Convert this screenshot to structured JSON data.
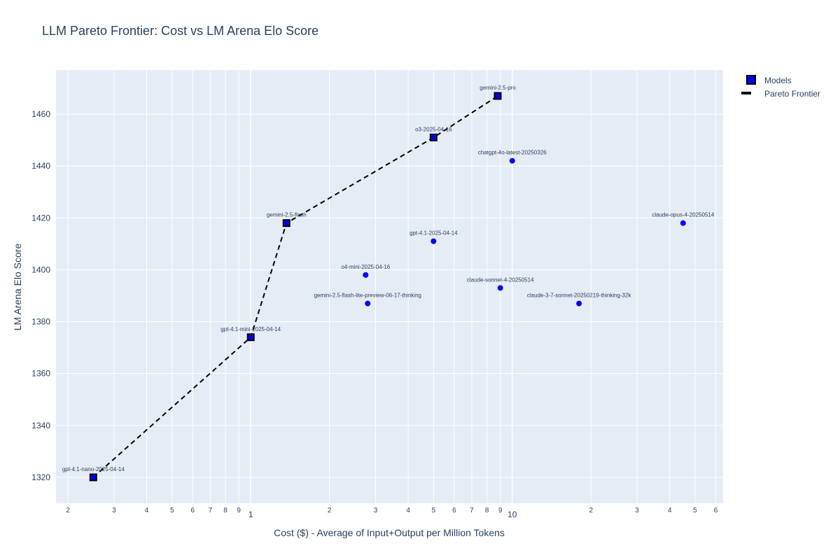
{
  "chart_data": {
    "type": "scatter",
    "title": "LLM Pareto Frontier: Cost vs LM Arena Elo Score",
    "xlabel": "Cost ($) - Average of Input+Output per Million Tokens",
    "ylabel": "LM Arena Elo Score",
    "x_scale": "log",
    "xlim": [
      0.18,
      64
    ],
    "ylim": [
      1310,
      1477
    ],
    "y_ticks": [
      1320,
      1340,
      1360,
      1380,
      1400,
      1420,
      1440,
      1460
    ],
    "x_tick_labels": [
      {
        "value": 0.2,
        "label": "2",
        "major": false
      },
      {
        "value": 0.3,
        "label": "3",
        "major": false
      },
      {
        "value": 0.4,
        "label": "4",
        "major": false
      },
      {
        "value": 0.5,
        "label": "5",
        "major": false
      },
      {
        "value": 0.6,
        "label": "6",
        "major": false
      },
      {
        "value": 0.7,
        "label": "7",
        "major": false
      },
      {
        "value": 0.8,
        "label": "8",
        "major": false
      },
      {
        "value": 0.9,
        "label": "9",
        "major": false
      },
      {
        "value": 1,
        "label": "1",
        "major": true
      },
      {
        "value": 2,
        "label": "2",
        "major": false
      },
      {
        "value": 3,
        "label": "3",
        "major": false
      },
      {
        "value": 4,
        "label": "4",
        "major": false
      },
      {
        "value": 5,
        "label": "5",
        "major": false
      },
      {
        "value": 6,
        "label": "6",
        "major": false
      },
      {
        "value": 7,
        "label": "7",
        "major": false
      },
      {
        "value": 8,
        "label": "8",
        "major": false
      },
      {
        "value": 9,
        "label": "9",
        "major": false
      },
      {
        "value": 10,
        "label": "10",
        "major": true
      },
      {
        "value": 20,
        "label": "2",
        "major": false
      },
      {
        "value": 30,
        "label": "3",
        "major": false
      },
      {
        "value": 40,
        "label": "4",
        "major": false
      },
      {
        "value": 50,
        "label": "5",
        "major": false
      },
      {
        "value": 60,
        "label": "6",
        "major": false
      }
    ],
    "grid": true,
    "legend_position": "top-right",
    "colors": {
      "plot_bg": "#e5ecf6",
      "grid": "#ffffff",
      "marker": "#0000ff",
      "frontier_line": "#000000",
      "text": "#2a3f5f"
    },
    "series": [
      {
        "name": "Models",
        "marker": "circle",
        "points": [
          {
            "label": "gpt-4.1-nano-2025-04-14",
            "x": 0.25,
            "y": 1320
          },
          {
            "label": "gpt-4.1-mini-2025-04-14",
            "x": 1.0,
            "y": 1374
          },
          {
            "label": "gemini-2.5-flash",
            "x": 1.37,
            "y": 1418
          },
          {
            "label": "o3-2025-04-16",
            "x": 5.0,
            "y": 1451
          },
          {
            "label": "gemini-2.5-pro",
            "x": 8.8,
            "y": 1467
          },
          {
            "label": "chatgpt-4o-latest-20250326",
            "x": 10.0,
            "y": 1442
          },
          {
            "label": "gpt-4.1-2025-04-14",
            "x": 5.0,
            "y": 1411
          },
          {
            "label": "o4-mini-2025-04-16",
            "x": 2.75,
            "y": 1398
          },
          {
            "label": "gemini-2.5-flash-lite-preview-06-17-thinking",
            "x": 2.8,
            "y": 1387
          },
          {
            "label": "claude-sonnet-4-20250514",
            "x": 9.0,
            "y": 1393
          },
          {
            "label": "claude-3-7-sonnet-20250219-thinking-32k",
            "x": 18.0,
            "y": 1387
          },
          {
            "label": "claude-opus-4-20250514",
            "x": 45.0,
            "y": 1418
          }
        ]
      },
      {
        "name": "Pareto Frontier",
        "line": "dash",
        "frontier_labels": [
          "gpt-4.1-nano-2025-04-14",
          "gpt-4.1-mini-2025-04-14",
          "gemini-2.5-flash",
          "o3-2025-04-16",
          "gemini-2.5-pro"
        ]
      }
    ]
  }
}
